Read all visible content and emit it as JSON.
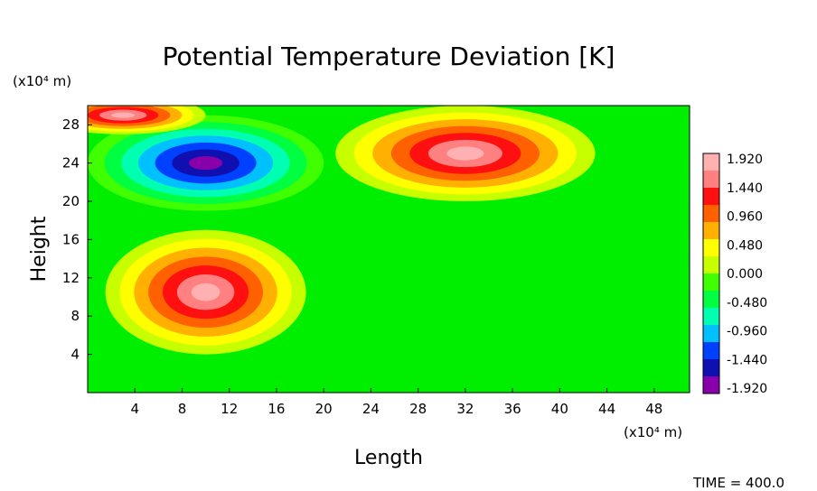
{
  "chart_data": {
    "type": "heatmap",
    "title": "Potential Temperature Deviation [K]",
    "xlabel": "Length",
    "ylabel": "Height",
    "x_unit": "(x10⁴ m)",
    "y_unit": "(x10⁴ m)",
    "xlim": [
      0,
      51
    ],
    "ylim": [
      0,
      30
    ],
    "x_ticks": [
      4,
      8,
      12,
      16,
      20,
      24,
      28,
      32,
      36,
      40,
      44,
      48
    ],
    "y_ticks": [
      4,
      8,
      12,
      16,
      20,
      24,
      28
    ],
    "colorbar": {
      "labels": [
        "1.920",
        "1.440",
        "0.960",
        "0.480",
        "0.000",
        "-0.480",
        "-0.960",
        "-1.440",
        "-1.920"
      ],
      "vmin": -1.92,
      "vmax": 1.92,
      "colors": [
        "#8800aa",
        "#1010b0",
        "#0040ff",
        "#00c0ff",
        "#00ffb0",
        "#00ff40",
        "#40ff00",
        "#c8ff00",
        "#ffff00",
        "#ffb000",
        "#ff6000",
        "#ff1010",
        "#ff8080",
        "#ffb0b0"
      ]
    },
    "features": [
      {
        "name": "warm bubble",
        "x": 10,
        "y": 10.5,
        "rx": 8.5,
        "ry": 6.5,
        "peak": 2.0
      },
      {
        "name": "cold anomaly",
        "x": 10,
        "y": 24,
        "rx": 10,
        "ry": 5,
        "peak": -2.0
      },
      {
        "name": "warm anomaly",
        "x": 32,
        "y": 25,
        "rx": 11,
        "ry": 5,
        "peak": 2.0
      },
      {
        "name": "warm anomaly",
        "x": 3,
        "y": 29,
        "rx": 7,
        "ry": 2,
        "peak": 2.0
      }
    ],
    "grid": false
  },
  "footer": {
    "time_label": "TIME = 400.0"
  }
}
